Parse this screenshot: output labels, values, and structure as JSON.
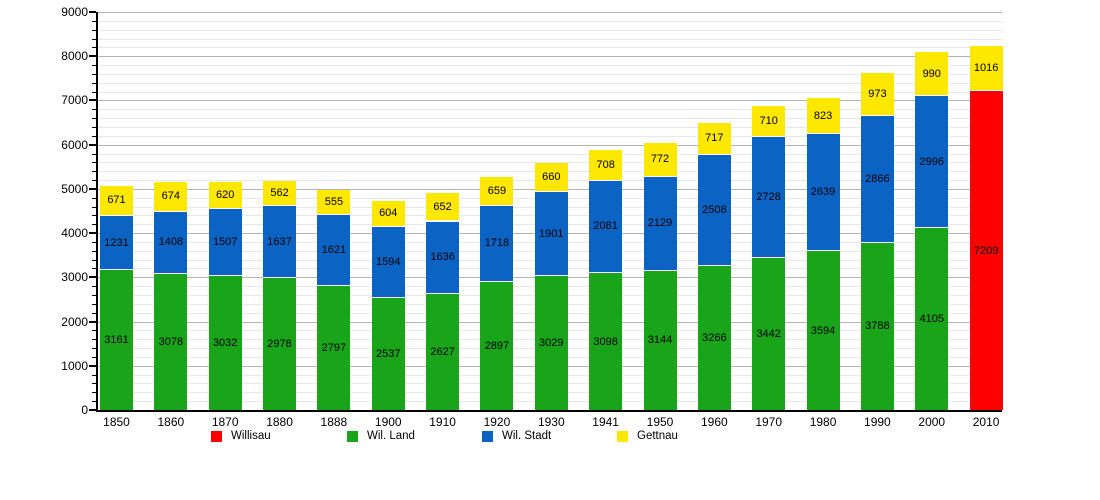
{
  "chart_data": {
    "type": "bar",
    "stacked": true,
    "title": "",
    "xlabel": "",
    "ylabel": "",
    "ylim": [
      0,
      9000
    ],
    "y_major_step": 1000,
    "y_minor_step": 200,
    "grid": true,
    "legend_position": "bottom",
    "categories": [
      "1850",
      "1860",
      "1870",
      "1880",
      "1888",
      "1900",
      "1910",
      "1920",
      "1930",
      "1941",
      "1950",
      "1960",
      "1970",
      "1980",
      "1990",
      "2000",
      "2010"
    ],
    "series_colors": {
      "Willisau": "#ff0000",
      "Wil. Land": "#1aa41a",
      "Wil. Stadt": "#0b63c3",
      "Gettnau": "#ffe800"
    },
    "legend": [
      {
        "label": "Willisau",
        "color": "#ff0000"
      },
      {
        "label": "Wil. Land",
        "color": "#1aa41a"
      },
      {
        "label": "Wil. Stadt",
        "color": "#0b63c3"
      },
      {
        "label": "Gettnau",
        "color": "#ffe800"
      }
    ],
    "bars": [
      {
        "year": "1850",
        "segments": [
          {
            "series": "Wil. Land",
            "value": 3161
          },
          {
            "series": "Wil. Stadt",
            "value": 1231
          },
          {
            "series": "Gettnau",
            "value": 671
          }
        ]
      },
      {
        "year": "1860",
        "segments": [
          {
            "series": "Wil. Land",
            "value": 3078
          },
          {
            "series": "Wil. Stadt",
            "value": 1408
          },
          {
            "series": "Gettnau",
            "value": 674
          }
        ]
      },
      {
        "year": "1870",
        "segments": [
          {
            "series": "Wil. Land",
            "value": 3032
          },
          {
            "series": "Wil. Stadt",
            "value": 1507
          },
          {
            "series": "Gettnau",
            "value": 620
          }
        ]
      },
      {
        "year": "1880",
        "segments": [
          {
            "series": "Wil. Land",
            "value": 2978
          },
          {
            "series": "Wil. Stadt",
            "value": 1637
          },
          {
            "series": "Gettnau",
            "value": 562
          }
        ]
      },
      {
        "year": "1888",
        "segments": [
          {
            "series": "Wil. Land",
            "value": 2797
          },
          {
            "series": "Wil. Stadt",
            "value": 1621
          },
          {
            "series": "Gettnau",
            "value": 555
          }
        ]
      },
      {
        "year": "1900",
        "segments": [
          {
            "series": "Wil. Land",
            "value": 2537
          },
          {
            "series": "Wil. Stadt",
            "value": 1594
          },
          {
            "series": "Gettnau",
            "value": 604
          }
        ]
      },
      {
        "year": "1910",
        "segments": [
          {
            "series": "Wil. Land",
            "value": 2627
          },
          {
            "series": "Wil. Stadt",
            "value": 1636
          },
          {
            "series": "Gettnau",
            "value": 652
          }
        ]
      },
      {
        "year": "1920",
        "segments": [
          {
            "series": "Wil. Land",
            "value": 2897
          },
          {
            "series": "Wil. Stadt",
            "value": 1718
          },
          {
            "series": "Gettnau",
            "value": 659
          }
        ]
      },
      {
        "year": "1930",
        "segments": [
          {
            "series": "Wil. Land",
            "value": 3029
          },
          {
            "series": "Wil. Stadt",
            "value": 1901
          },
          {
            "series": "Gettnau",
            "value": 660
          }
        ]
      },
      {
        "year": "1941",
        "segments": [
          {
            "series": "Wil. Land",
            "value": 3098
          },
          {
            "series": "Wil. Stadt",
            "value": 2081
          },
          {
            "series": "Gettnau",
            "value": 708
          }
        ]
      },
      {
        "year": "1950",
        "segments": [
          {
            "series": "Wil. Land",
            "value": 3144
          },
          {
            "series": "Wil. Stadt",
            "value": 2129
          },
          {
            "series": "Gettnau",
            "value": 772
          }
        ]
      },
      {
        "year": "1960",
        "segments": [
          {
            "series": "Wil. Land",
            "value": 3266
          },
          {
            "series": "Wil. Stadt",
            "value": 2508
          },
          {
            "series": "Gettnau",
            "value": 717
          }
        ]
      },
      {
        "year": "1970",
        "segments": [
          {
            "series": "Wil. Land",
            "value": 3442
          },
          {
            "series": "Wil. Stadt",
            "value": 2728
          },
          {
            "series": "Gettnau",
            "value": 710
          }
        ]
      },
      {
        "year": "1980",
        "segments": [
          {
            "series": "Wil. Land",
            "value": 3594
          },
          {
            "series": "Wil. Stadt",
            "value": 2639
          },
          {
            "series": "Gettnau",
            "value": 823
          }
        ]
      },
      {
        "year": "1990",
        "segments": [
          {
            "series": "Wil. Land",
            "value": 3788
          },
          {
            "series": "Wil. Stadt",
            "value": 2866
          },
          {
            "series": "Gettnau",
            "value": 973
          }
        ]
      },
      {
        "year": "2000",
        "segments": [
          {
            "series": "Wil. Land",
            "value": 4105
          },
          {
            "series": "Wil. Stadt",
            "value": 2996
          },
          {
            "series": "Gettnau",
            "value": 990
          }
        ]
      },
      {
        "year": "2010",
        "segments": [
          {
            "series": "Willisau",
            "value": 7209
          },
          {
            "series": "Gettnau",
            "value": 1016
          }
        ]
      }
    ]
  }
}
